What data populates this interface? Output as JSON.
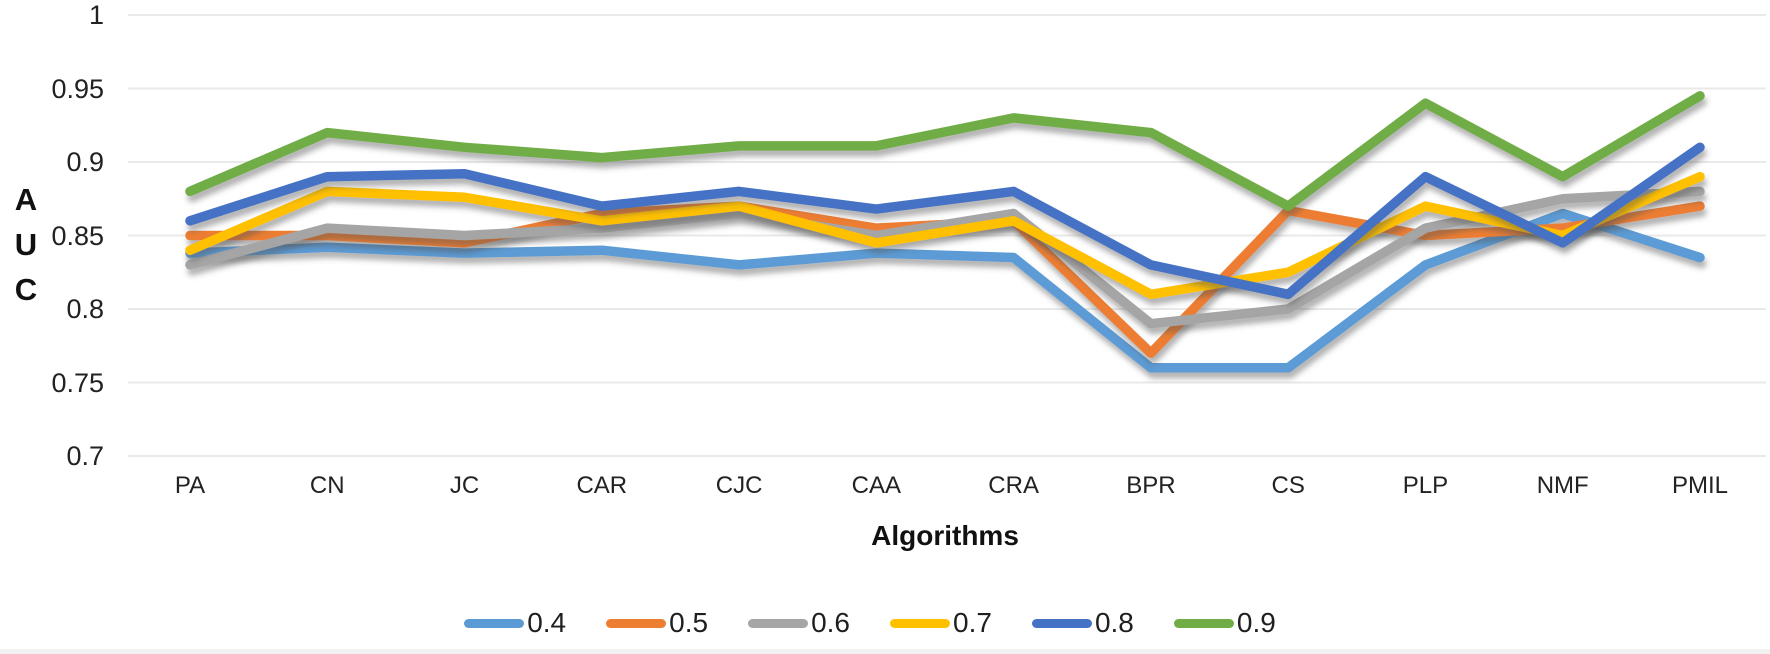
{
  "chart_data": {
    "type": "line",
    "title": "",
    "xlabel": "Algorithms",
    "ylabel": "AUC",
    "ylim": [
      0.7,
      1.0
    ],
    "grid": "horizontal",
    "legend_position": "bottom",
    "y_ticks": [
      {
        "label": "1",
        "value": 1.0
      },
      {
        "label": "0.95",
        "value": 0.95
      },
      {
        "label": "0.9",
        "value": 0.9
      },
      {
        "label": "0.85",
        "value": 0.85
      },
      {
        "label": "0.8",
        "value": 0.8
      },
      {
        "label": "0.75",
        "value": 0.75
      },
      {
        "label": "0.7",
        "value": 0.7
      }
    ],
    "categories": [
      "PA",
      "CN",
      "JC",
      "CAR",
      "CJC",
      "CAA",
      "CRA",
      "BPR",
      "CS",
      "PLP",
      "NMF",
      "PMIL"
    ],
    "series": [
      {
        "name": "0.4",
        "color": "#5B9BD5",
        "values": [
          0.838,
          0.842,
          0.838,
          0.84,
          0.83,
          0.838,
          0.835,
          0.76,
          0.76,
          0.83,
          0.865,
          0.835
        ]
      },
      {
        "name": "0.5",
        "color": "#ED7D31",
        "values": [
          0.85,
          0.85,
          0.845,
          0.865,
          0.87,
          0.855,
          0.86,
          0.77,
          0.867,
          0.85,
          0.855,
          0.87
        ]
      },
      {
        "name": "0.6",
        "color": "#A5A5A5",
        "values": [
          0.83,
          0.855,
          0.85,
          0.855,
          0.865,
          0.85,
          0.865,
          0.79,
          0.8,
          0.855,
          0.875,
          0.88
        ]
      },
      {
        "name": "0.7",
        "color": "#FFC000",
        "values": [
          0.84,
          0.88,
          0.876,
          0.86,
          0.87,
          0.845,
          0.86,
          0.81,
          0.825,
          0.87,
          0.85,
          0.89
        ]
      },
      {
        "name": "0.8",
        "color": "#4472C4",
        "values": [
          0.86,
          0.89,
          0.892,
          0.87,
          0.88,
          0.868,
          0.88,
          0.83,
          0.81,
          0.89,
          0.845,
          0.91
        ]
      },
      {
        "name": "0.9",
        "color": "#70AD47",
        "values": [
          0.88,
          0.92,
          0.91,
          0.903,
          0.911,
          0.911,
          0.93,
          0.92,
          0.87,
          0.94,
          0.89,
          0.945
        ]
      }
    ],
    "grid_color": "#e9e9e9"
  }
}
